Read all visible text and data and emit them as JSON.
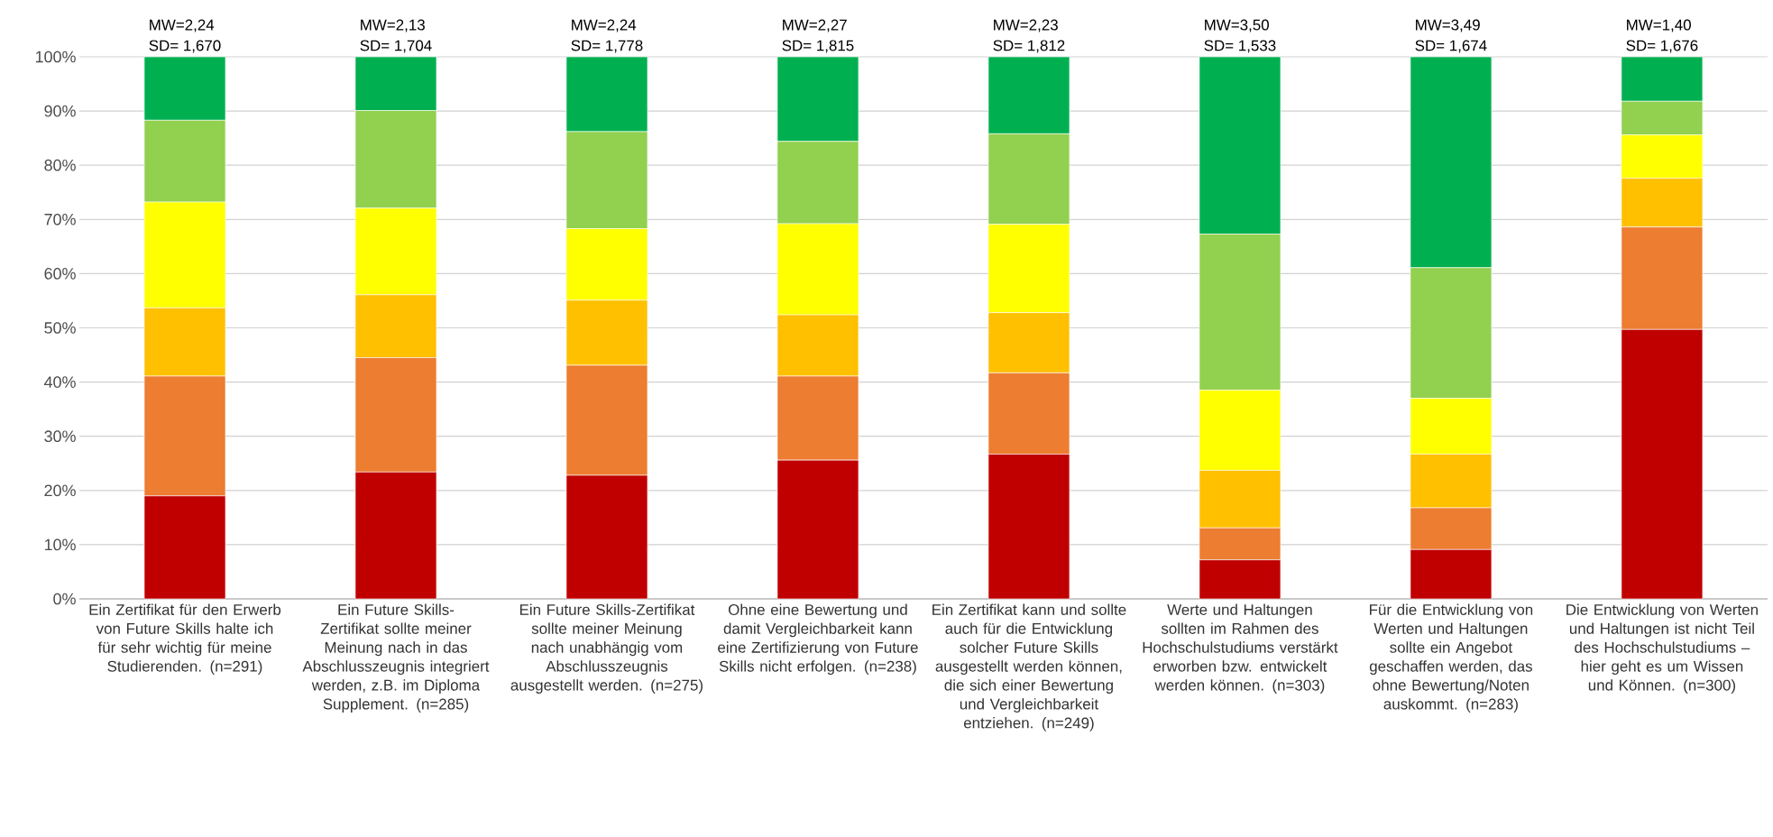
{
  "chart_data": {
    "type": "bar",
    "stacked": true,
    "categories": [
      "Ein Zertifikat für den Erwerb von Future Skills halte ich für sehr wichtig für meine Studierenden. (n=291)",
      "Ein Future Skills-Zertifikat sollte meiner Meinung nach in das Abschlusszeugnis integriert werden, z.B. im Diploma Supplement. (n=285)",
      "Ein Future Skills-Zertifikat sollte meiner Meinung nach unabhängig vom Abschlusszeugnis ausgestellt werden. (n=275)",
      "Ohne eine Bewertung und damit Vergleichbarkeit kann eine Zertifizierung von Future Skills nicht erfolgen. (n=238)",
      "Ein Zertifikat kann und sollte auch für die Entwicklung solcher Future Skills ausgestellt werden können, die sich einer Bewertung und Vergleichbarkeit entziehen. (n=249)",
      "Werte und Haltungen sollten im Rahmen des Hochschulstudiums verstärkt erworben bzw. entwickelt werden können. (n=303)",
      "Für die Entwicklung von Werten und Haltungen sollte ein Angebot geschaffen werden, das ohne Bewertung/Noten auskommt. (n=283)",
      "Die Entwicklung von Werten und Haltungen ist nicht Teil des Hochschulstudiums – hier geht es um Wissen und Können. (n=300)"
    ],
    "series": [
      {
        "color": "#c00000",
        "values": [
          19.0,
          23.4,
          22.8,
          25.6,
          26.7,
          7.2,
          9.1,
          49.7
        ]
      },
      {
        "color": "#ed7d31",
        "values": [
          22.1,
          21.1,
          20.3,
          15.5,
          15.0,
          5.9,
          7.7,
          18.9
        ]
      },
      {
        "color": "#ffc000",
        "values": [
          12.6,
          11.6,
          12.0,
          11.3,
          11.1,
          10.6,
          9.9,
          9.0
        ]
      },
      {
        "color": "#ffff00",
        "values": [
          19.5,
          16.0,
          13.2,
          16.8,
          16.3,
          14.8,
          10.3,
          8.0
        ]
      },
      {
        "color": "#92d050",
        "values": [
          15.1,
          18.0,
          17.9,
          15.2,
          16.7,
          28.8,
          24.1,
          6.2
        ]
      },
      {
        "color": "#00b050",
        "values": [
          11.7,
          9.9,
          13.8,
          15.6,
          14.2,
          32.7,
          38.9,
          8.2
        ]
      }
    ],
    "ylim": [
      0,
      100
    ],
    "yticks": [
      {
        "value": 0,
        "label": "0%"
      },
      {
        "value": 10,
        "label": "10%"
      },
      {
        "value": 20,
        "label": "20%"
      },
      {
        "value": 30,
        "label": "30%"
      },
      {
        "value": 40,
        "label": "40%"
      },
      {
        "value": 50,
        "label": "50%"
      },
      {
        "value": 60,
        "label": "60%"
      },
      {
        "value": 70,
        "label": "70%"
      },
      {
        "value": 80,
        "label": "80%"
      },
      {
        "value": 90,
        "label": "90%"
      },
      {
        "value": 100,
        "label": "100%"
      }
    ],
    "grid": "y",
    "annotations": [
      "MW=2,24",
      "SD=  1,670",
      "MW=2,13",
      "SD=  1,704",
      "MW=2,24",
      "SD=  1,778",
      "MW=2,27",
      "SD=  1,815",
      "MW=2,23",
      "SD=  1,812",
      "MW=3,50",
      "SD=  1,533",
      "MW=3,49",
      "SD=  1,674",
      "MW=1,40",
      "SD=  1,676"
    ]
  }
}
